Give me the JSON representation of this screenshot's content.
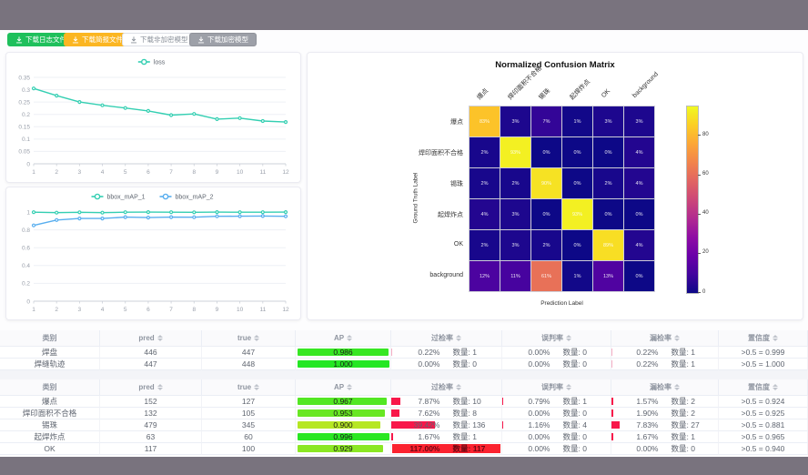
{
  "frame": {
    "top_bar_color": "#79737e",
    "bottom_bar_color": "#79737e",
    "page_bg": "#fdfdfe"
  },
  "toolbar": {
    "buttons": [
      {
        "id": "download-log",
        "label": "下载日志文件",
        "style": "green",
        "color": "#1fc05c",
        "icon": "download-icon"
      },
      {
        "id": "download-brief",
        "label": "下载简报文件",
        "style": "orange",
        "color": "#fbb622",
        "icon": "download-icon"
      },
      {
        "id": "download-plain-model",
        "label": "下载非加密模型",
        "style": "plain",
        "color": "#ffffff",
        "icon": "download-icon"
      },
      {
        "id": "download-encrypted-model",
        "label": "下载加密模型",
        "style": "gray",
        "color": "#9da0a8",
        "icon": "download-icon"
      }
    ]
  },
  "chart_data": [
    {
      "id": "loss",
      "type": "line",
      "legend": [
        "loss"
      ],
      "legend_position": "top",
      "grid": true,
      "x": [
        1,
        2,
        3,
        4,
        5,
        6,
        7,
        8,
        9,
        10,
        11,
        12
      ],
      "series": [
        {
          "name": "loss",
          "color": "#34cfb2",
          "values": [
            0.305,
            0.276,
            0.25,
            0.237,
            0.226,
            0.214,
            0.197,
            0.202,
            0.181,
            0.185,
            0.173,
            0.169
          ]
        }
      ],
      "ylim": [
        0,
        0.35
      ],
      "yticks": [
        0,
        0.05,
        0.1,
        0.15,
        0.2,
        0.25,
        0.3,
        0.35
      ],
      "xlabel": "",
      "ylabel": ""
    },
    {
      "id": "bbox_map",
      "type": "line",
      "legend": [
        "bbox_mAP_1",
        "bbox_mAP_2"
      ],
      "legend_position": "top",
      "grid": true,
      "x": [
        1,
        2,
        3,
        4,
        5,
        6,
        7,
        8,
        9,
        10,
        11,
        12
      ],
      "series": [
        {
          "name": "bbox_mAP_1",
          "color": "#34cfb2",
          "values": [
            0.998,
            0.993,
            0.997,
            0.993,
            0.998,
            0.999,
            0.998,
            0.997,
            0.999,
            0.998,
            0.998,
            0.999
          ]
        },
        {
          "name": "bbox_mAP_2",
          "color": "#58aeef",
          "values": [
            0.85,
            0.91,
            0.928,
            0.928,
            0.943,
            0.938,
            0.943,
            0.942,
            0.952,
            0.953,
            0.955,
            0.952
          ]
        }
      ],
      "ylim": [
        0,
        1
      ],
      "yticks": [
        0,
        0.2,
        0.4,
        0.6,
        0.8,
        1
      ],
      "xlabel": "",
      "ylabel": ""
    },
    {
      "id": "confusion",
      "type": "heatmap",
      "title": "Normalized Confusion Matrix",
      "xlabel": "Prediction Label",
      "ylabel": "Ground Truth Label",
      "labels": [
        "爆点",
        "焊印面积不合格",
        "锡珠",
        "起焊炸点",
        "OK",
        "background"
      ],
      "unit": "%",
      "vmax": 95,
      "colorbar_ticks": [
        80,
        60,
        40,
        20,
        0
      ],
      "matrix": [
        [
          83,
          3,
          7,
          1,
          3,
          3
        ],
        [
          2,
          93,
          0,
          0,
          0,
          4
        ],
        [
          2,
          2,
          90,
          0,
          2,
          4
        ],
        [
          4,
          3,
          0,
          93,
          0,
          0
        ],
        [
          2,
          3,
          2,
          0,
          89,
          4
        ],
        [
          12,
          11,
          61,
          1,
          13,
          0
        ]
      ]
    }
  ],
  "table_headers": [
    {
      "label": "类别",
      "sortable": false
    },
    {
      "label": "pred",
      "sortable": true
    },
    {
      "label": "true",
      "sortable": true
    },
    {
      "label": "AP",
      "sortable": true
    },
    {
      "label": "过检率",
      "sortable": true
    },
    {
      "label": "误判率",
      "sortable": true
    },
    {
      "label": "漏检率",
      "sortable": true
    },
    {
      "label": "置信度",
      "sortable": true
    }
  ],
  "count_prefix": "数量:",
  "tables": [
    {
      "rows": [
        {
          "name": "焊盘",
          "pred": "446",
          "true": "447",
          "ap": "0.986",
          "over": {
            "pct": "0.22%",
            "count": "1"
          },
          "mis": {
            "pct": "0.00%",
            "count": "0"
          },
          "miss": {
            "pct": "0.22%",
            "count": "1"
          },
          "conf": ">0.5 = 0.999"
        },
        {
          "name": "焊缝轨迹",
          "pred": "447",
          "true": "448",
          "ap": "1.000",
          "over": {
            "pct": "0.00%",
            "count": "0"
          },
          "mis": {
            "pct": "0.00%",
            "count": "0"
          },
          "miss": {
            "pct": "0.22%",
            "count": "1"
          },
          "conf": ">0.5 = 1.000"
        }
      ]
    },
    {
      "rows": [
        {
          "name": "爆点",
          "pred": "152",
          "true": "127",
          "ap": "0.967",
          "over": {
            "pct": "7.87%",
            "count": "10"
          },
          "mis": {
            "pct": "0.79%",
            "count": "1"
          },
          "miss": {
            "pct": "1.57%",
            "count": "2"
          },
          "conf": ">0.5 = 0.924"
        },
        {
          "name": "焊印面积不合格",
          "pred": "132",
          "true": "105",
          "ap": "0.953",
          "over": {
            "pct": "7.62%",
            "count": "8"
          },
          "mis": {
            "pct": "0.00%",
            "count": "0"
          },
          "miss": {
            "pct": "1.90%",
            "count": "2"
          },
          "conf": ">0.5 = 0.925"
        },
        {
          "name": "锡珠",
          "pred": "479",
          "true": "345",
          "ap": "0.900",
          "over": {
            "pct": "39.42%",
            "count": "136"
          },
          "mis": {
            "pct": "1.16%",
            "count": "4"
          },
          "miss": {
            "pct": "7.83%",
            "count": "27"
          },
          "conf": ">0.5 = 0.881"
        },
        {
          "name": "起焊炸点",
          "pred": "63",
          "true": "60",
          "ap": "0.996",
          "over": {
            "pct": "1.67%",
            "count": "1"
          },
          "mis": {
            "pct": "0.00%",
            "count": "0"
          },
          "miss": {
            "pct": "1.67%",
            "count": "1"
          },
          "conf": ">0.5 = 0.965"
        },
        {
          "name": "OK",
          "pred": "117",
          "true": "100",
          "ap": "0.929",
          "over": {
            "pct": "117.00%",
            "count": "117"
          },
          "mis": {
            "pct": "0.00%",
            "count": "0"
          },
          "miss": {
            "pct": "0.00%",
            "count": "0"
          },
          "conf": ">0.5 = 0.940"
        }
      ]
    }
  ],
  "status_colors": {
    "rate_bar_red": "#f8174a",
    "rate_bar_pink": "#f6afc4",
    "rate_full_red": "#fb2330"
  }
}
